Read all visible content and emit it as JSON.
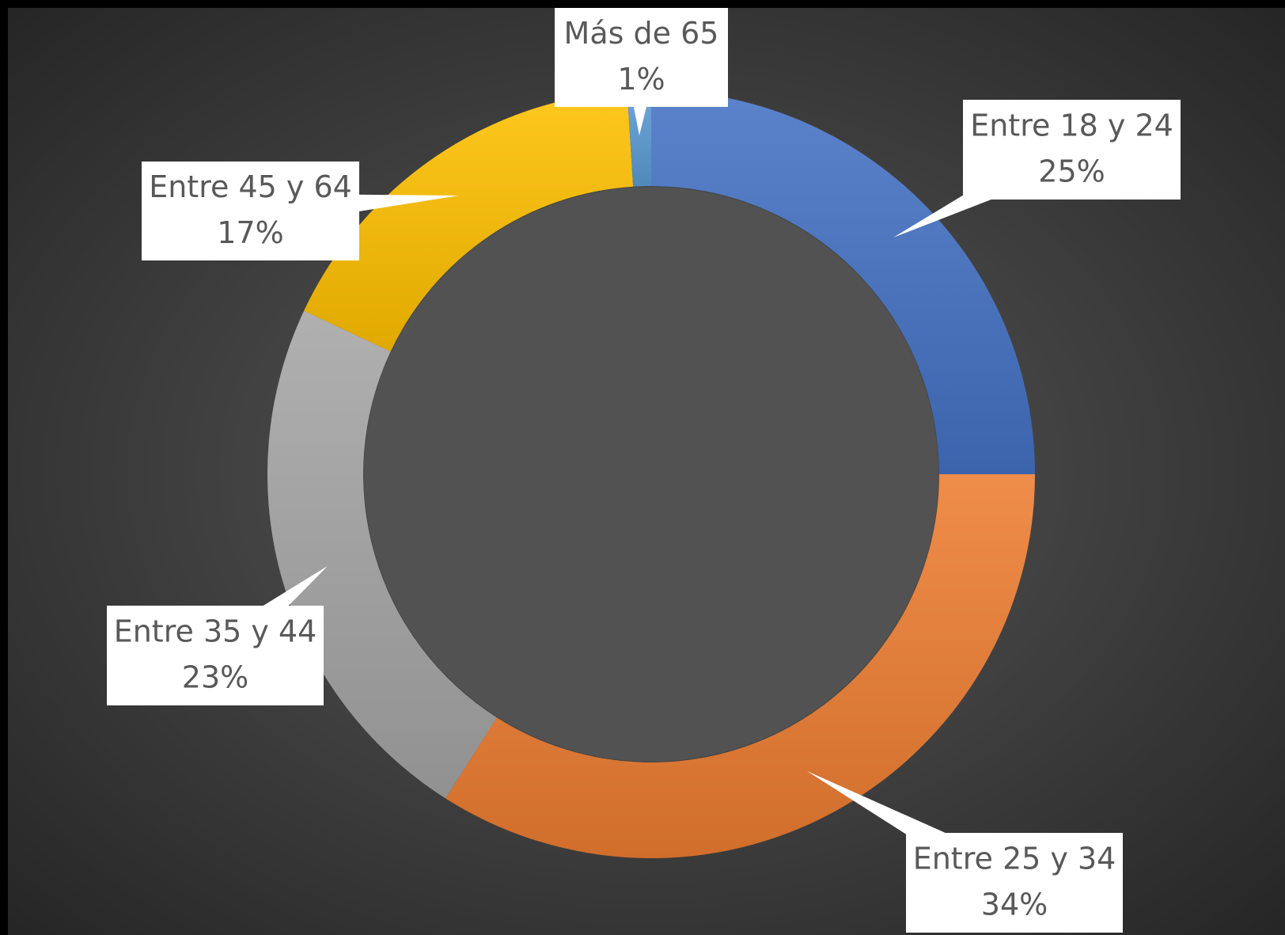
{
  "chart_data": {
    "type": "donut",
    "categories": [
      "Entre 18 y 24",
      "Entre 25 y 34",
      "Entre 35 y 44",
      "Entre 45 y 64",
      "Más de 65"
    ],
    "values": [
      25,
      34,
      23,
      17,
      1
    ],
    "value_labels": [
      "25%",
      "34%",
      "23%",
      "17%",
      "1%"
    ],
    "colors": [
      "#4472c4",
      "#ed7d31",
      "#a5a5a5",
      "#ffc000",
      "#5b9bd5"
    ]
  }
}
